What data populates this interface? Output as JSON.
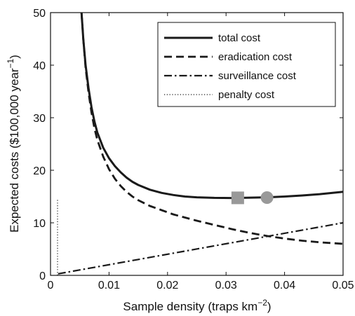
{
  "chart_data": {
    "type": "line",
    "xlabel": {
      "main": "Sample density (traps km",
      "sup": "−2",
      "close": ")"
    },
    "ylabel": {
      "main": "Expected costs ($100,000 year",
      "sup": "−1",
      "close": ")"
    },
    "xlim": [
      0,
      0.05
    ],
    "ylim": [
      0,
      50
    ],
    "xticks": [
      0,
      0.01,
      0.02,
      0.03,
      0.04,
      0.05
    ],
    "xtick_labels": [
      "0",
      "0.01",
      "0.02",
      "0.03",
      "0.04",
      "0.05"
    ],
    "yticks": [
      0,
      10,
      20,
      30,
      40,
      50
    ],
    "ytick_labels": [
      "0",
      "10",
      "20",
      "30",
      "40",
      "50"
    ],
    "legend_position": "top-right",
    "grid": false,
    "series": [
      {
        "name": "total cost",
        "style": "solid",
        "color": "#1a1a1a",
        "points": [
          [
            0.0053,
            50
          ],
          [
            0.0056,
            45
          ],
          [
            0.006,
            40
          ],
          [
            0.0065,
            35.6
          ],
          [
            0.007,
            32
          ],
          [
            0.0075,
            29.3
          ],
          [
            0.008,
            27.2
          ],
          [
            0.009,
            24.3
          ],
          [
            0.01,
            22.3
          ],
          [
            0.011,
            20.8
          ],
          [
            0.012,
            19.6
          ],
          [
            0.013,
            18.6
          ],
          [
            0.014,
            17.8
          ],
          [
            0.015,
            17.2
          ],
          [
            0.017,
            16.3
          ],
          [
            0.019,
            15.7
          ],
          [
            0.021,
            15.3
          ],
          [
            0.023,
            15.0
          ],
          [
            0.025,
            14.85
          ],
          [
            0.028,
            14.75
          ],
          [
            0.031,
            14.72
          ],
          [
            0.034,
            14.78
          ],
          [
            0.037,
            14.85
          ],
          [
            0.04,
            15.0
          ],
          [
            0.043,
            15.2
          ],
          [
            0.046,
            15.45
          ],
          [
            0.05,
            15.9
          ]
        ]
      },
      {
        "name": "eradication cost",
        "style": "dashed",
        "color": "#1a1a1a",
        "points": [
          [
            0.0053,
            50
          ],
          [
            0.0056,
            45
          ],
          [
            0.006,
            39.5
          ],
          [
            0.0065,
            34.8
          ],
          [
            0.007,
            31.0
          ],
          [
            0.0075,
            28.0
          ],
          [
            0.008,
            25.8
          ],
          [
            0.009,
            22.6
          ],
          [
            0.01,
            20.2
          ],
          [
            0.011,
            18.4
          ],
          [
            0.012,
            17.0
          ],
          [
            0.013,
            15.9
          ],
          [
            0.014,
            15.0
          ],
          [
            0.015,
            14.3
          ],
          [
            0.017,
            13.2
          ],
          [
            0.019,
            12.4
          ],
          [
            0.021,
            11.6
          ],
          [
            0.023,
            11.0
          ],
          [
            0.025,
            10.4
          ],
          [
            0.028,
            9.6
          ],
          [
            0.031,
            8.8
          ],
          [
            0.034,
            8.1
          ],
          [
            0.037,
            7.5
          ],
          [
            0.04,
            7.0
          ],
          [
            0.043,
            6.6
          ],
          [
            0.046,
            6.3
          ],
          [
            0.05,
            6.0
          ]
        ]
      },
      {
        "name": "surveillance cost",
        "style": "dashdot",
        "color": "#1a1a1a",
        "points": [
          [
            0.0013,
            0.3
          ],
          [
            0.05,
            10.0
          ]
        ]
      },
      {
        "name": "penalty cost",
        "style": "dotted",
        "color": "#1a1a1a",
        "points": [
          [
            0.0012,
            0
          ],
          [
            0.0012,
            14.6
          ]
        ]
      }
    ],
    "markers": [
      {
        "shape": "square",
        "x": 0.032,
        "y": 14.75,
        "color": "#999999"
      },
      {
        "shape": "circle",
        "x": 0.037,
        "y": 14.8,
        "color": "#999999"
      }
    ]
  }
}
